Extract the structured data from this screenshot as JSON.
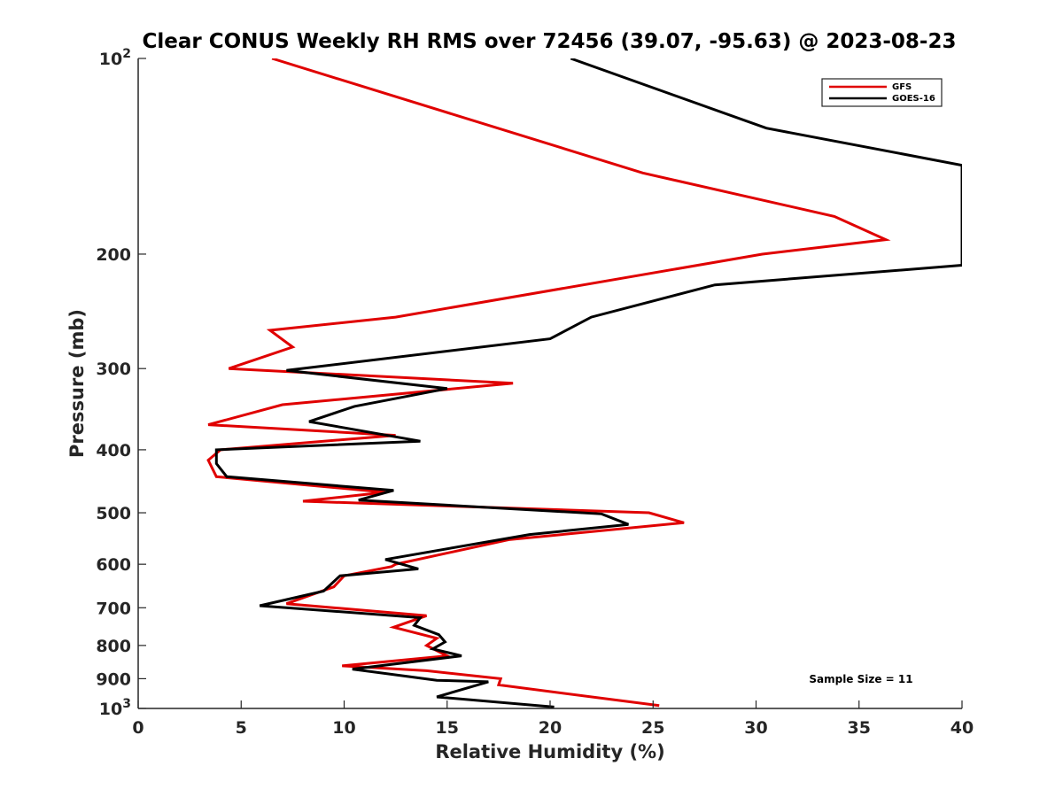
{
  "chart_data": {
    "type": "line",
    "title": "Clear CONUS Weekly RH RMS over 72456 (39.07, -95.63) @ 2023-08-23",
    "xlabel": "Relative Humidity (%)",
    "ylabel": "Pressure (mb)",
    "xlim": [
      0,
      40
    ],
    "ylim": [
      100,
      1000
    ],
    "yscale": "log",
    "y_reversed": true,
    "xticks": [
      0,
      5,
      10,
      15,
      20,
      25,
      30,
      35,
      40
    ],
    "yticks": [
      {
        "value": 100,
        "base": "10",
        "exp": "2"
      },
      {
        "value": 200,
        "label": "200"
      },
      {
        "value": 300,
        "label": "300"
      },
      {
        "value": 400,
        "label": "400"
      },
      {
        "value": 500,
        "label": "500"
      },
      {
        "value": 600,
        "label": "600"
      },
      {
        "value": 700,
        "label": "700"
      },
      {
        "value": 800,
        "label": "800"
      },
      {
        "value": 900,
        "label": "900"
      },
      {
        "value": 1000,
        "base": "10",
        "exp": "3"
      }
    ],
    "legend_position": "top-right",
    "annotation": "Sample Size = 11",
    "series": [
      {
        "name": "GFS",
        "color": "#e00000",
        "points": [
          [
            6.5,
            100
          ],
          [
            24.5,
            150
          ],
          [
            33.8,
            175
          ],
          [
            36.3,
            190
          ],
          [
            30.3,
            200
          ],
          [
            12.5,
            250
          ],
          [
            6.4,
            262
          ],
          [
            7.5,
            278
          ],
          [
            4.4,
            300
          ],
          [
            18.2,
            316
          ],
          [
            7.0,
            341
          ],
          [
            3.4,
            366
          ],
          [
            12.5,
            380
          ],
          [
            4.0,
            400
          ],
          [
            3.4,
            415
          ],
          [
            3.8,
            440
          ],
          [
            12.0,
            465
          ],
          [
            8.0,
            480
          ],
          [
            24.8,
            500
          ],
          [
            26.5,
            518
          ],
          [
            18.0,
            550
          ],
          [
            12.5,
            600
          ],
          [
            12.3,
            605
          ],
          [
            10.0,
            625
          ],
          [
            9.5,
            650
          ],
          [
            7.2,
            690
          ],
          [
            14.0,
            720
          ],
          [
            12.4,
            750
          ],
          [
            14.5,
            780
          ],
          [
            14.0,
            800
          ],
          [
            15.0,
            830
          ],
          [
            9.9,
            860
          ],
          [
            14.0,
            875
          ],
          [
            17.6,
            900
          ],
          [
            17.5,
            920
          ],
          [
            25.3,
            990
          ]
        ]
      },
      {
        "name": "GOES-16",
        "color": "#000000",
        "points": [
          [
            21.0,
            100
          ],
          [
            30.5,
            128
          ],
          [
            40.0,
            146
          ],
          [
            40.0,
            208
          ],
          [
            28.0,
            223
          ],
          [
            22.0,
            250
          ],
          [
            20.0,
            270
          ],
          [
            7.2,
            302
          ],
          [
            15.0,
            322
          ],
          [
            10.5,
            343
          ],
          [
            8.3,
            362
          ],
          [
            13.7,
            388
          ],
          [
            3.8,
            400
          ],
          [
            3.8,
            420
          ],
          [
            4.3,
            440
          ],
          [
            12.4,
            462
          ],
          [
            10.7,
            478
          ],
          [
            22.5,
            502
          ],
          [
            23.8,
            521
          ],
          [
            19.0,
            540
          ],
          [
            12.0,
            590
          ],
          [
            13.6,
            610
          ],
          [
            9.8,
            625
          ],
          [
            9.0,
            660
          ],
          [
            5.9,
            695
          ],
          [
            13.7,
            725
          ],
          [
            13.4,
            745
          ],
          [
            14.6,
            770
          ],
          [
            14.9,
            790
          ],
          [
            14.3,
            810
          ],
          [
            15.7,
            830
          ],
          [
            10.4,
            870
          ],
          [
            14.5,
            905
          ],
          [
            17.0,
            910
          ],
          [
            14.5,
            960
          ],
          [
            20.2,
            995
          ]
        ]
      }
    ]
  }
}
